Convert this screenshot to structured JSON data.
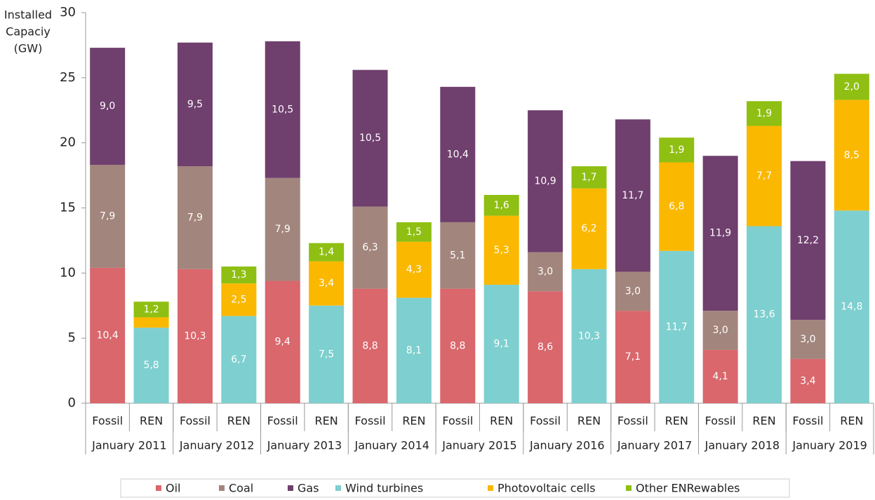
{
  "chart_data": {
    "type": "bar",
    "stacked": true,
    "ylabel": [
      "Installed",
      "Capaciy",
      "(GW)"
    ],
    "categories": [
      "Fossil",
      "REN",
      "Fossil",
      "REN",
      "Fossil",
      "REN",
      "Fossil",
      "REN",
      "Fossil",
      "REN",
      "Fossil",
      "REN",
      "Fossil",
      "REN",
      "Fossil",
      "REN",
      "Fossil",
      "REN"
    ],
    "groups": [
      "January 2011",
      "January 2012",
      "January 2013",
      "January 2014",
      "January 2015",
      "January 2016",
      "January 2017",
      "January 2018",
      "January 2019"
    ],
    "ylim": [
      0,
      30
    ],
    "yticks": [
      0,
      5,
      10,
      15,
      20,
      25,
      30
    ],
    "legend": "bottom",
    "series": [
      {
        "name": "Oil",
        "color": "#d9676c",
        "values": [
          10.4,
          null,
          10.3,
          null,
          9.4,
          null,
          8.8,
          null,
          8.8,
          null,
          8.6,
          null,
          7.1,
          null,
          4.1,
          null,
          3.4,
          null
        ],
        "value_labels": [
          "10,4",
          null,
          "10,3",
          null,
          "9,4",
          null,
          "8,8",
          null,
          "8,8",
          null,
          "8,6",
          null,
          "7,1",
          null,
          "4,1",
          null,
          "3,4",
          null
        ]
      },
      {
        "name": "Coal",
        "color": "#a2857c",
        "values": [
          7.9,
          null,
          7.9,
          null,
          7.9,
          null,
          6.3,
          null,
          5.1,
          null,
          3.0,
          null,
          3.0,
          null,
          3.0,
          null,
          3.0,
          null
        ],
        "value_labels": [
          "7,9",
          null,
          "7,9",
          null,
          "7,9",
          null,
          "6,3",
          null,
          "5,1",
          null,
          "3,0",
          null,
          "3,0",
          null,
          "3,0",
          null,
          "3,0",
          null
        ]
      },
      {
        "name": "Gas",
        "color": "#6f3f6e",
        "values": [
          9.0,
          null,
          9.5,
          null,
          10.5,
          null,
          10.5,
          null,
          10.4,
          null,
          10.9,
          null,
          11.7,
          null,
          11.9,
          null,
          12.2,
          null
        ],
        "value_labels": [
          "9,0",
          null,
          "9,5",
          null,
          "10,5",
          null,
          "10,5",
          null,
          "10,4",
          null,
          "10,9",
          null,
          "11,7",
          null,
          "11,9",
          null,
          "12,2",
          null
        ]
      },
      {
        "name": "Wind turbines",
        "color": "#7ecfcf",
        "values": [
          null,
          5.8,
          null,
          6.7,
          null,
          7.5,
          null,
          8.1,
          null,
          9.1,
          null,
          10.3,
          null,
          11.7,
          null,
          13.6,
          null,
          14.8
        ],
        "value_labels": [
          null,
          "5,8",
          null,
          "6,7",
          null,
          "7,5",
          null,
          "8,1",
          null,
          "9,1",
          null,
          "10,3",
          null,
          "11,7",
          null,
          "13,6",
          null,
          "14,8"
        ]
      },
      {
        "name": "Photovoltaic cells",
        "color": "#fbb800",
        "values": [
          null,
          0.8,
          null,
          2.5,
          null,
          3.4,
          null,
          4.3,
          null,
          5.3,
          null,
          6.2,
          null,
          6.8,
          null,
          7.7,
          null,
          8.5
        ],
        "value_labels": [
          null,
          null,
          null,
          "2,5",
          null,
          "3,4",
          null,
          "4,3",
          null,
          "5,3",
          null,
          "6,2",
          null,
          "6,8",
          null,
          "7,7",
          null,
          "8,5"
        ]
      },
      {
        "name": "Other ENRewables",
        "color": "#8fbf12",
        "values": [
          null,
          1.2,
          null,
          1.3,
          null,
          1.4,
          null,
          1.5,
          null,
          1.6,
          null,
          1.7,
          null,
          1.9,
          null,
          1.9,
          null,
          2.0
        ],
        "value_labels": [
          null,
          "1,2",
          null,
          "1,3",
          null,
          "1,4",
          null,
          "1,5",
          null,
          "1,6",
          null,
          "1,7",
          null,
          "1,9",
          null,
          "1,9",
          null,
          "2,0"
        ]
      }
    ]
  }
}
